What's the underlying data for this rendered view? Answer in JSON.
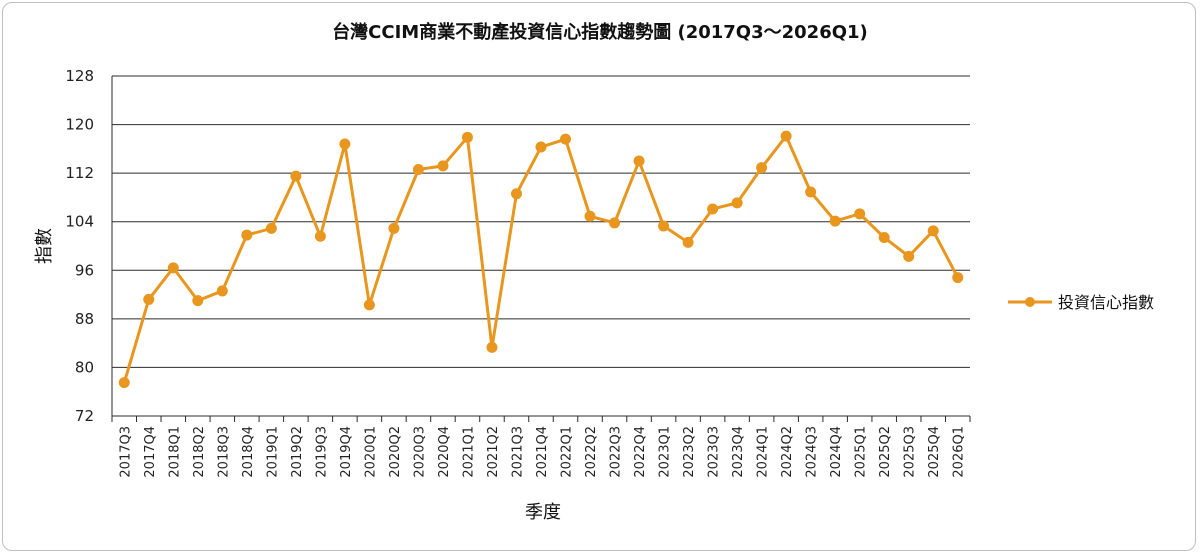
{
  "chart_data": {
    "type": "line",
    "title": "台灣CCIM商業不動產投資信心指數趨勢圖 (2017Q3～2026Q1)",
    "xlabel": "季度",
    "ylabel": "指數",
    "ylim": [
      72,
      128
    ],
    "yticks": [
      72,
      80,
      88,
      96,
      104,
      112,
      120,
      128
    ],
    "grid": true,
    "legend_position": "right",
    "categories": [
      "2017Q3",
      "2017Q4",
      "2018Q1",
      "2018Q2",
      "2018Q3",
      "2018Q4",
      "2019Q1",
      "2019Q2",
      "2019Q3",
      "2019Q4",
      "2020Q1",
      "2020Q2",
      "2020Q3",
      "2020Q4",
      "2021Q1",
      "2021Q2",
      "2021Q3",
      "2021Q4",
      "2022Q1",
      "2022Q2",
      "2022Q3",
      "2022Q4",
      "2023Q1",
      "2023Q2",
      "2023Q3",
      "2023Q4",
      "2024Q1",
      "2024Q2",
      "2024Q3",
      "2024Q4",
      "2025Q1",
      "2025Q2",
      "2025Q3",
      "2025Q4",
      "2026Q1"
    ],
    "series": [
      {
        "name": "投資信心指數",
        "color": "#e8961e",
        "values": [
          77.5,
          91.2,
          96.4,
          91.0,
          92.6,
          101.8,
          102.9,
          111.5,
          101.6,
          116.8,
          90.3,
          102.9,
          112.6,
          113.2,
          117.9,
          83.3,
          108.6,
          116.3,
          117.6,
          104.9,
          103.8,
          114.0,
          103.3,
          100.6,
          106.1,
          107.1,
          112.9,
          118.1,
          108.9,
          104.1,
          105.3,
          101.4,
          98.3,
          102.5,
          94.8
        ]
      }
    ]
  }
}
